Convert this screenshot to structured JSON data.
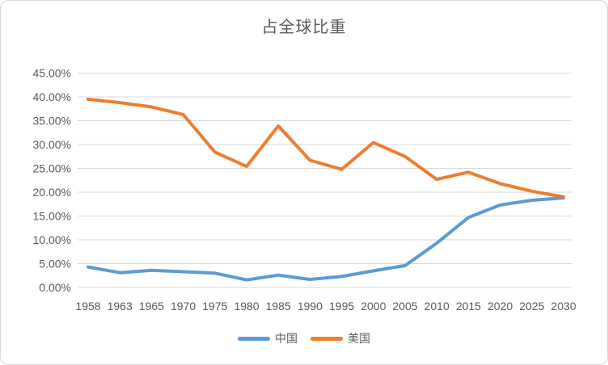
{
  "chart_data": {
    "type": "line",
    "title": "占全球比重",
    "xlabel": "",
    "ylabel": "",
    "categories": [
      "1958",
      "1963",
      "1965",
      "1970",
      "1975",
      "1980",
      "1985",
      "1990",
      "1995",
      "2000",
      "2005",
      "2010",
      "2015",
      "2020",
      "2025",
      "2030"
    ],
    "series": [
      {
        "key": "china",
        "name": "中国",
        "color": "#5B9BD5",
        "values": [
          4.3,
          3.1,
          3.6,
          3.3,
          3.0,
          1.6,
          2.6,
          1.7,
          2.3,
          3.5,
          4.6,
          9.3,
          14.7,
          17.3,
          18.3,
          18.8
        ]
      },
      {
        "key": "usa",
        "name": "美国",
        "color": "#ED7D31",
        "values": [
          39.5,
          38.8,
          37.9,
          36.3,
          28.4,
          25.4,
          33.9,
          26.7,
          24.8,
          30.4,
          27.5,
          22.7,
          24.2,
          21.8,
          20.2,
          19.0
        ]
      }
    ],
    "y_ticks": [
      {
        "label": "45.00%",
        "value": 45
      },
      {
        "label": "40.00%",
        "value": 40
      },
      {
        "label": "35.00%",
        "value": 35
      },
      {
        "label": "30.00%",
        "value": 30
      },
      {
        "label": "25.00%",
        "value": 25
      },
      {
        "label": "20.00%",
        "value": 20
      },
      {
        "label": "15.00%",
        "value": 15
      },
      {
        "label": "10.00%",
        "value": 10
      },
      {
        "label": "5.00%",
        "value": 5
      },
      {
        "label": "0.00%",
        "value": 0
      }
    ],
    "ylim": [
      0,
      45
    ],
    "grid": true,
    "legend_position": "bottom",
    "text_color": "#595959",
    "gridline_color": "#D9D9D9",
    "border_color": "#D9D9D9",
    "background_color": "#FFFFFF"
  }
}
